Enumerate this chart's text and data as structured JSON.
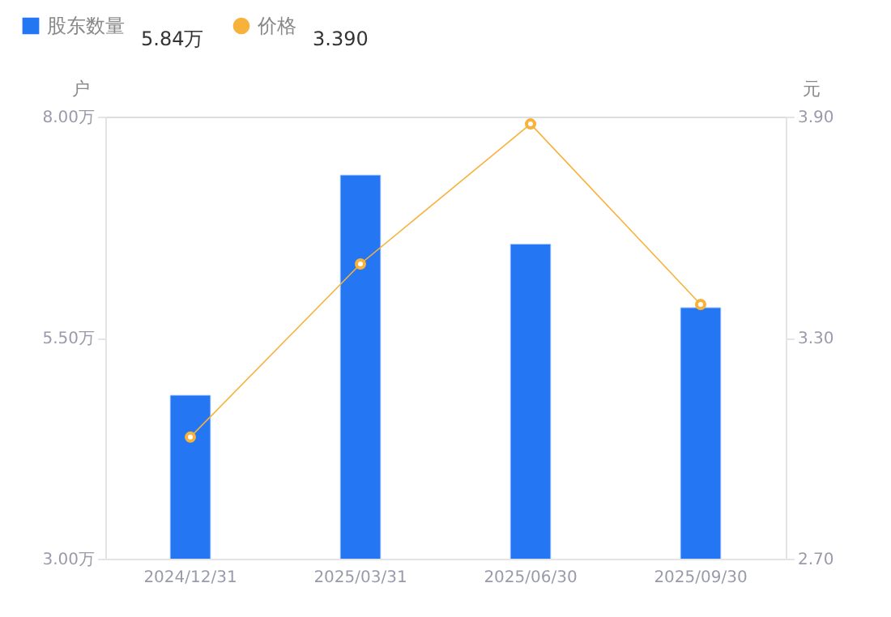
{
  "chart_data": {
    "type": "bar",
    "categories": [
      "2024/12/31",
      "2025/03/31",
      "2025/06/30",
      "2025/09/30"
    ],
    "series": [
      {
        "name": "股东数量",
        "color": "#2476f3",
        "values": [
          4.85,
          7.34,
          6.56,
          5.84
        ]
      },
      {
        "name": "价格",
        "type": "line",
        "axis": "y2",
        "color": "#f7b23b",
        "marker": "circle",
        "values": [
          3.03,
          3.5,
          3.88,
          3.39
        ]
      }
    ],
    "annotations": [
      "5.84万",
      "3.390"
    ],
    "ylabel": "户",
    "y2label": "元",
    "ylim": [
      3.0,
      8.0
    ],
    "yticks": [
      {
        "value": 3.0,
        "label": "3.00万"
      },
      {
        "value": 5.5,
        "label": "5.50万"
      },
      {
        "value": 8.0,
        "label": "8.00万"
      }
    ],
    "y2lim": [
      2.7,
      3.9
    ],
    "y2ticks": [
      {
        "value": 2.7,
        "label": "2.70"
      },
      {
        "value": 3.3,
        "label": "3.30"
      },
      {
        "value": 3.9,
        "label": "3.90"
      }
    ],
    "grid": false,
    "legend": "top left"
  }
}
